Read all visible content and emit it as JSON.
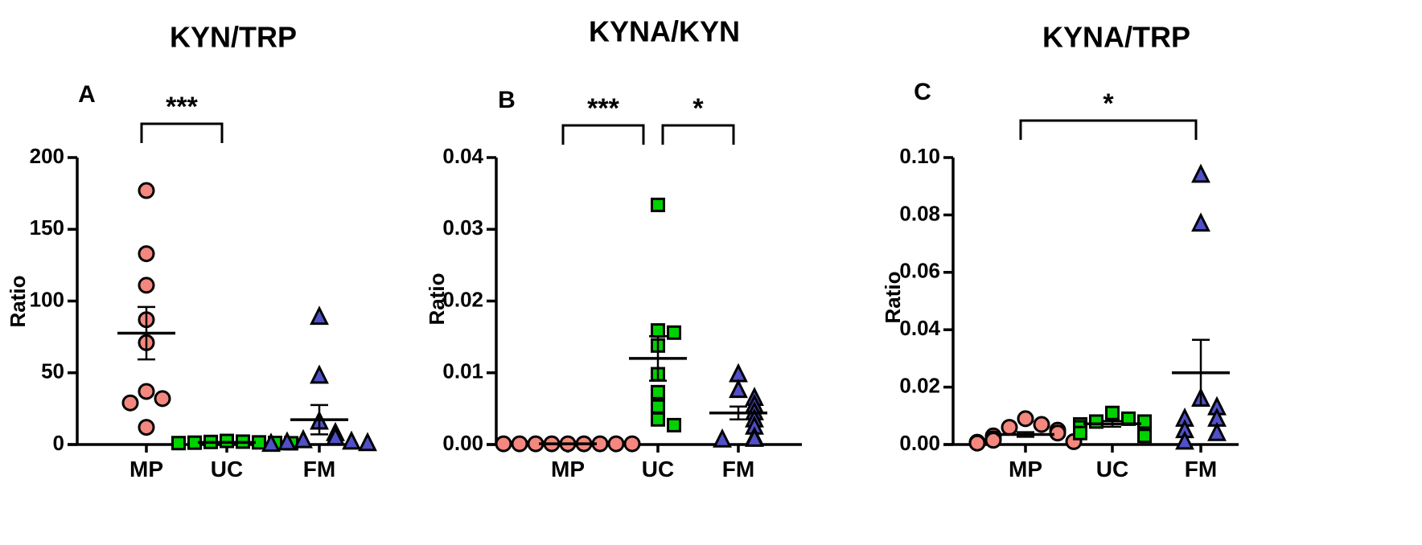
{
  "chart_data": [
    {
      "type": "scatter",
      "panel_letter": "A",
      "title": "KYN/TRP",
      "ylabel": "Ratio",
      "xlabel": "",
      "categories": [
        "MP",
        "UC",
        "FM"
      ],
      "ylim": [
        0,
        200
      ],
      "yticks": [
        "0",
        "50",
        "100",
        "150",
        "200"
      ],
      "series": [
        {
          "name": "MP",
          "values": [
            177,
            133,
            111,
            87,
            71,
            37,
            32,
            29,
            12
          ],
          "mean": 77.6,
          "sem": 18.3
        },
        {
          "name": "UC",
          "values": [
            2.5,
            2.0,
            1.8,
            1.5,
            1.3,
            1.1,
            1.0,
            0.9
          ],
          "mean": 1.5,
          "sem": 0.2
        },
        {
          "name": "FM",
          "values": [
            89,
            48,
            16,
            8,
            5,
            3,
            2,
            1.5,
            1,
            0.5
          ],
          "mean": 17.3,
          "sem": 10.2
        }
      ],
      "comparisons": [
        {
          "from": "MP",
          "to": "UC",
          "label": "***"
        }
      ],
      "colors": {
        "MP": "#F4877E",
        "UC": "#00D200",
        "FM": "#5050C8"
      },
      "markers": {
        "MP": "circle",
        "UC": "square",
        "FM": "triangle"
      },
      "grid": false
    },
    {
      "type": "scatter",
      "panel_letter": "B",
      "title": "KYNA/KYN",
      "ylabel": "Ratio",
      "xlabel": "",
      "categories": [
        "MP",
        "UC",
        "FM"
      ],
      "ylim": [
        0,
        0.04
      ],
      "yticks": [
        "0.00",
        "0.01",
        "0.02",
        "0.03",
        "0.04"
      ],
      "series": [
        {
          "name": "MP",
          "values": [
            0.0001,
            0.0001,
            0.0001,
            0.0001,
            0.0001,
            0.0001,
            0.0001,
            0.0001,
            0.0001
          ],
          "mean": 0.0001,
          "sem": 1e-05
        },
        {
          "name": "UC",
          "values": [
            0.0334,
            0.0159,
            0.0156,
            0.0138,
            0.0098,
            0.0073,
            0.0053,
            0.0035,
            0.0027
          ],
          "mean": 0.012,
          "sem": 0.0031
        },
        {
          "name": "FM",
          "values": [
            0.0098,
            0.0076,
            0.0065,
            0.0055,
            0.0045,
            0.0035,
            0.0025,
            0.001,
            0.0008,
            0.0007
          ],
          "mean": 0.0044,
          "sem": 0.0009
        }
      ],
      "comparisons": [
        {
          "from": "MP",
          "to": "UC",
          "label": "***"
        },
        {
          "from": "UC",
          "to": "FM",
          "label": "*"
        }
      ],
      "colors": {
        "MP": "#F4877E",
        "UC": "#00D200",
        "FM": "#5050C8"
      },
      "markers": {
        "MP": "circle",
        "UC": "square",
        "FM": "triangle"
      },
      "grid": false
    },
    {
      "type": "scatter",
      "panel_letter": "C",
      "title": "KYNA/TRP",
      "ylabel": "Ratio",
      "xlabel": "",
      "categories": [
        "MP",
        "UC",
        "FM"
      ],
      "ylim": [
        0,
        0.1
      ],
      "yticks": [
        "0.00",
        "0.02",
        "0.04",
        "0.06",
        "0.08",
        "0.10"
      ],
      "series": [
        {
          "name": "MP",
          "values": [
            0.009,
            0.007,
            0.006,
            0.005,
            0.004,
            0.003,
            0.002,
            0.0015,
            0.001,
            0.0008,
            0.0005
          ],
          "mean": 0.0035,
          "sem": 0.0008
        },
        {
          "name": "UC",
          "values": [
            0.011,
            0.009,
            0.008,
            0.008,
            0.007,
            0.006,
            0.004,
            0.003
          ],
          "mean": 0.0072,
          "sem": 0.001
        },
        {
          "name": "FM",
          "values": [
            0.094,
            0.077,
            0.016,
            0.013,
            0.009,
            0.009,
            0.005,
            0.004,
            0.001
          ],
          "mean": 0.025,
          "sem": 0.0115
        }
      ],
      "comparisons": [
        {
          "from": "MP",
          "to": "FM",
          "label": "*"
        }
      ],
      "colors": {
        "MP": "#F4877E",
        "UC": "#00D200",
        "FM": "#5050C8"
      },
      "markers": {
        "MP": "circle",
        "UC": "square",
        "FM": "triangle"
      },
      "grid": false
    }
  ]
}
